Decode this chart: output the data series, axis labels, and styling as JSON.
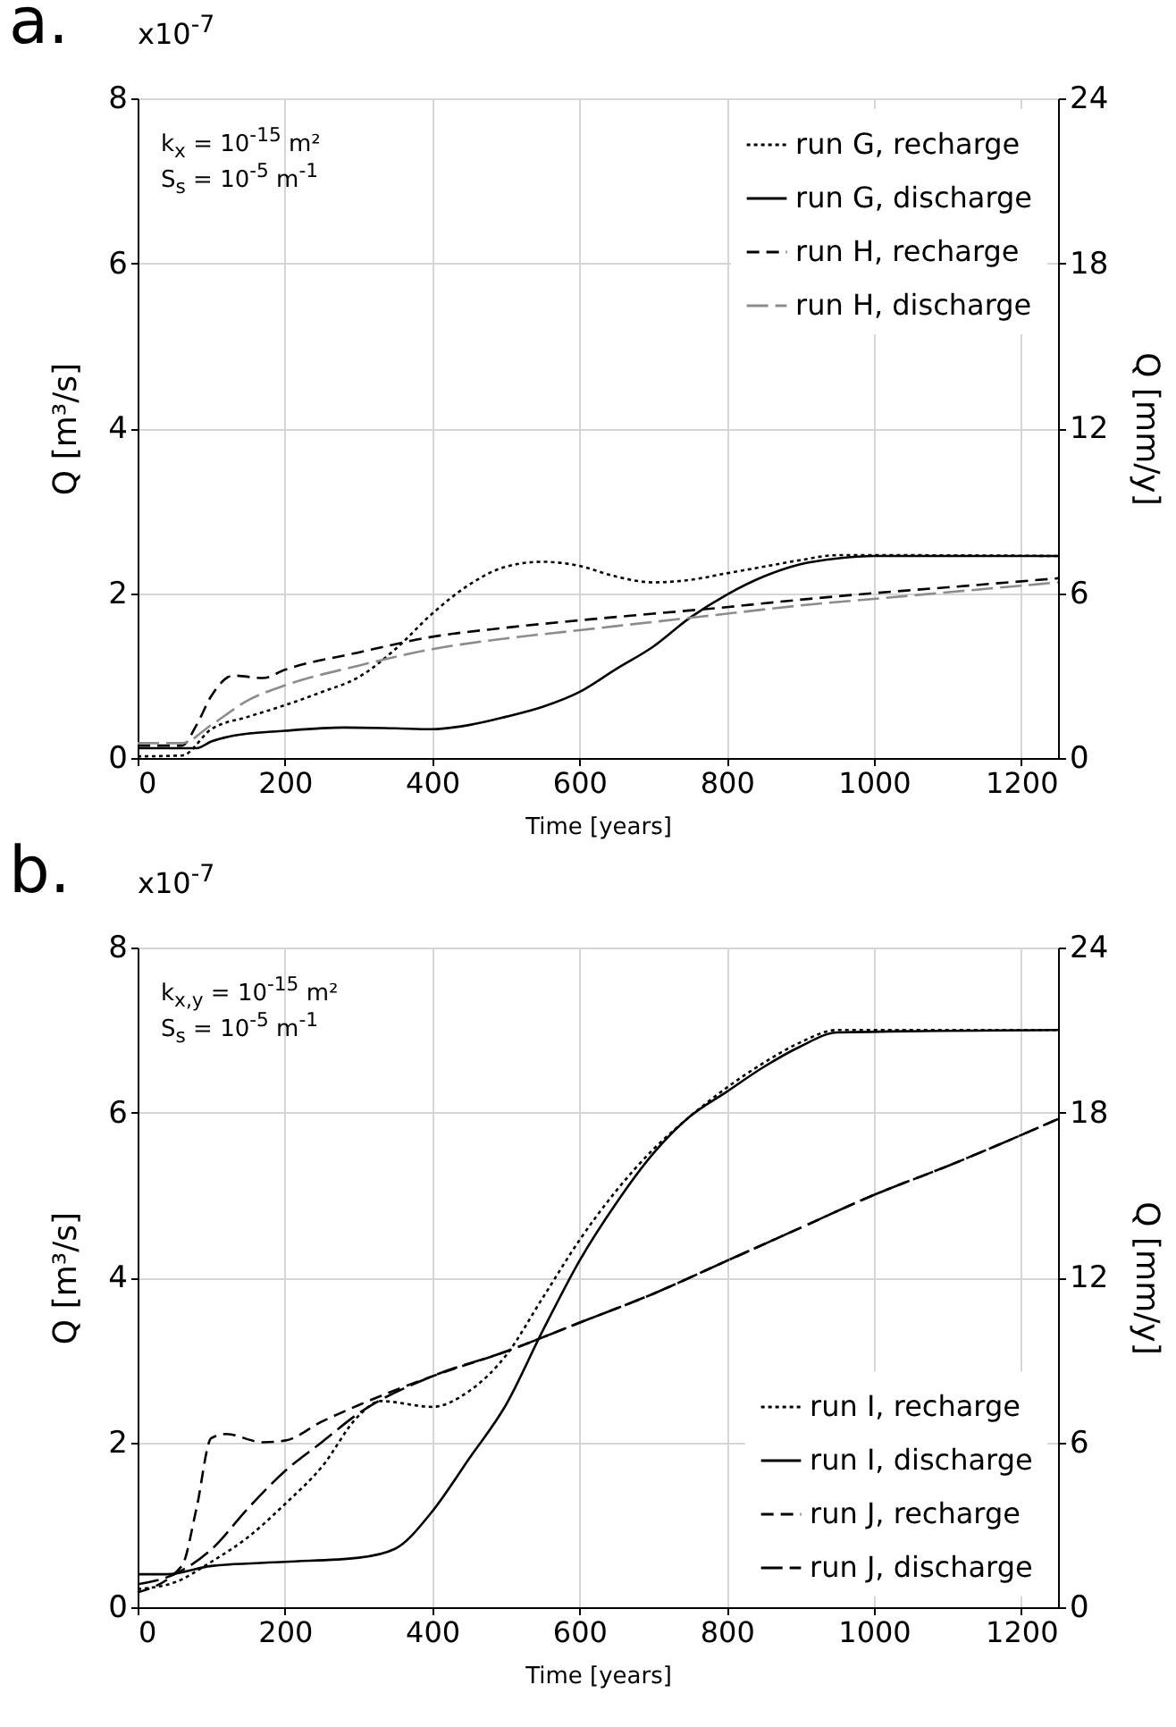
{
  "chart_data": [
    {
      "type": "line",
      "title": "a.",
      "xlabel": "Time [years]",
      "ylabel": "Q [m³/s]",
      "y2label": "Q [mm/y]",
      "annotations": [
        "x10$^{-7}$",
        "k$_{x}$ = 10$^{-15}$ m²",
        "S$_{s}$ = 10$^{-5}$ m$^{-1}$"
      ],
      "xlim": [
        0,
        1250
      ],
      "xticks": [
        0,
        200,
        400,
        600,
        800,
        1000,
        1200
      ],
      "ylim": [
        0,
        8
      ],
      "yticks": [
        0,
        2,
        4,
        6,
        8
      ],
      "y2lim": [
        0,
        24
      ],
      "y2ticks": [
        0,
        6,
        12,
        18,
        24
      ],
      "grid": true,
      "legend": "top right",
      "marker": "none",
      "series": [
        {
          "name": "run G, recharge",
          "color": "#000000",
          "line_style": "dotted",
          "x": [
            0,
            60,
            100,
            150,
            200,
            250,
            300,
            350,
            400,
            450,
            500,
            550,
            600,
            650,
            700,
            750,
            800,
            850,
            900,
            950,
            1000,
            1250
          ],
          "values": [
            0.02,
            0.03,
            0.35,
            0.5,
            0.64,
            0.8,
            0.98,
            1.32,
            1.75,
            2.1,
            2.32,
            2.38,
            2.33,
            2.2,
            2.13,
            2.16,
            2.24,
            2.32,
            2.4,
            2.46,
            2.46,
            2.45
          ]
        },
        {
          "name": "run G, discharge",
          "color": "#000000",
          "line_style": "solid",
          "x": [
            0,
            80,
            100,
            130,
            200,
            280,
            350,
            400,
            450,
            500,
            550,
            600,
            650,
            700,
            750,
            800,
            850,
            900,
            950,
            1000,
            1250
          ],
          "values": [
            0.12,
            0.12,
            0.2,
            0.27,
            0.33,
            0.37,
            0.36,
            0.35,
            0.4,
            0.5,
            0.62,
            0.8,
            1.08,
            1.35,
            1.7,
            1.98,
            2.2,
            2.35,
            2.42,
            2.45,
            2.45
          ]
        },
        {
          "name": "run H, recharge",
          "color": "#000000",
          "line_style": "dashed",
          "x": [
            0,
            60,
            80,
            100,
            130,
            170,
            200,
            300,
            400,
            500,
            600,
            700,
            800,
            900,
            1000,
            1100,
            1250
          ],
          "values": [
            0.15,
            0.15,
            0.4,
            0.75,
            1.0,
            0.97,
            1.07,
            1.28,
            1.47,
            1.58,
            1.67,
            1.75,
            1.83,
            1.92,
            2.0,
            2.07,
            2.18
          ]
        },
        {
          "name": "run H, discharge",
          "color": "#8c8c8c",
          "line_style": "dashed",
          "x": [
            0,
            60,
            100,
            150,
            200,
            300,
            400,
            500,
            600,
            700,
            800,
            900,
            1000,
            1250
          ],
          "values": [
            0.18,
            0.18,
            0.4,
            0.7,
            0.88,
            1.12,
            1.32,
            1.45,
            1.55,
            1.65,
            1.75,
            1.85,
            1.93,
            2.13
          ]
        }
      ]
    },
    {
      "type": "line",
      "title": "b.",
      "xlabel": "Time [years]",
      "ylabel": "Q [m³/s]",
      "y2label": "Q [mm/y]",
      "annotations": [
        "x10$^{-7}$",
        "k$_{x,y}$ = 10$^{-15}$ m²",
        "S$_{s}$ = 10$^{-5}$ m$^{-1}$"
      ],
      "xlim": [
        0,
        1250
      ],
      "xticks": [
        0,
        200,
        400,
        600,
        800,
        1000,
        1200
      ],
      "ylim": [
        0,
        8
      ],
      "yticks": [
        0,
        2,
        4,
        6,
        8
      ],
      "y2lim": [
        0,
        24
      ],
      "y2ticks": [
        0,
        6,
        12,
        18,
        24
      ],
      "grid": true,
      "legend": "bottom right",
      "marker": "none",
      "series": [
        {
          "name": "run I, recharge",
          "color": "#000000",
          "line_style": "dotted",
          "x": [
            0,
            50,
            100,
            150,
            200,
            250,
            300,
            330,
            400,
            450,
            500,
            550,
            600,
            650,
            700,
            750,
            800,
            850,
            900,
            950,
            1250
          ],
          "values": [
            0.22,
            0.3,
            0.55,
            0.85,
            1.25,
            1.7,
            2.32,
            2.5,
            2.43,
            2.62,
            3.05,
            3.75,
            4.45,
            5.05,
            5.55,
            5.95,
            6.3,
            6.6,
            6.85,
            7.0,
            7.0
          ]
        },
        {
          "name": "run I, discharge",
          "color": "#000000",
          "line_style": "solid",
          "x": [
            0,
            40,
            100,
            200,
            300,
            350,
            400,
            450,
            500,
            550,
            600,
            650,
            700,
            750,
            800,
            850,
            900,
            950,
            1250
          ],
          "values": [
            0.4,
            0.4,
            0.5,
            0.55,
            0.6,
            0.71,
            1.16,
            1.8,
            2.45,
            3.35,
            4.2,
            4.9,
            5.5,
            5.95,
            6.25,
            6.55,
            6.8,
            6.97,
            7.0
          ]
        },
        {
          "name": "run J, recharge",
          "color": "#000000",
          "line_style": "dashed",
          "x": [
            0,
            60,
            80,
            100,
            120,
            170,
            200,
            250,
            300,
            400,
            500,
            600,
            700,
            800,
            900,
            1000,
            1100,
            1250
          ],
          "values": [
            0.18,
            0.5,
            1.2,
            2.05,
            2.1,
            2.0,
            2.02,
            2.25,
            2.45,
            2.8,
            3.1,
            3.45,
            3.8,
            4.2,
            4.6,
            5.0,
            5.35,
            5.92
          ]
        },
        {
          "name": "run J, discharge",
          "color": "#000000",
          "line_style": "dashed",
          "x": [
            0,
            50,
            100,
            150,
            200,
            250,
            300,
            400,
            500,
            600,
            700,
            800,
            900,
            1000,
            1100,
            1250
          ],
          "values": [
            0.28,
            0.4,
            0.7,
            1.2,
            1.65,
            2.0,
            2.35,
            2.8,
            3.1,
            3.45,
            3.8,
            4.2,
            4.6,
            5.0,
            5.35,
            5.92
          ]
        }
      ]
    }
  ]
}
